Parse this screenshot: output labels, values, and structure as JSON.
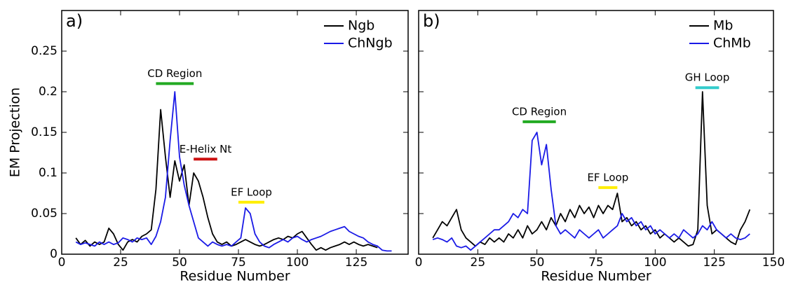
{
  "chart_data": [
    {
      "type": "line",
      "panel_label": "a)",
      "xlabel": "Residue Number",
      "ylabel": "EM Projection",
      "xlim": [
        0,
        147
      ],
      "xticks": [
        0,
        25,
        50,
        75,
        100,
        125
      ],
      "ylim": [
        0,
        0.3
      ],
      "yticks": [
        0,
        0.05,
        0.1,
        0.15,
        0.2,
        0.25
      ],
      "legend": "upper right",
      "x": [
        6,
        8,
        10,
        12,
        14,
        16,
        18,
        20,
        22,
        24,
        26,
        28,
        30,
        32,
        34,
        36,
        38,
        40,
        42,
        44,
        46,
        48,
        50,
        52,
        54,
        56,
        58,
        60,
        62,
        64,
        66,
        68,
        70,
        72,
        74,
        76,
        78,
        80,
        82,
        84,
        86,
        88,
        90,
        92,
        94,
        96,
        98,
        100,
        102,
        104,
        106,
        108,
        110,
        112,
        114,
        116,
        118,
        120,
        122,
        124,
        126,
        128,
        130,
        132,
        134,
        136,
        138,
        140
      ],
      "series": [
        {
          "name": "Ngb",
          "color": "#000000",
          "values": [
            0.02,
            0.012,
            0.017,
            0.01,
            0.015,
            0.012,
            0.015,
            0.032,
            0.025,
            0.012,
            0.005,
            0.015,
            0.018,
            0.015,
            0.022,
            0.025,
            0.03,
            0.08,
            0.178,
            0.12,
            0.07,
            0.115,
            0.09,
            0.11,
            0.06,
            0.1,
            0.09,
            0.07,
            0.045,
            0.025,
            0.015,
            0.012,
            0.015,
            0.01,
            0.012,
            0.015,
            0.018,
            0.015,
            0.012,
            0.01,
            0.012,
            0.015,
            0.018,
            0.02,
            0.018,
            0.022,
            0.02,
            0.025,
            0.028,
            0.02,
            0.012,
            0.005,
            0.008,
            0.005,
            0.008,
            0.01,
            0.012,
            0.015,
            0.012,
            0.015,
            0.012,
            0.01,
            0.012,
            0.01,
            0.008,
            null,
            null,
            null
          ]
        },
        {
          "name": "ChNgb",
          "color": "#1a1ae6",
          "values": [
            0.015,
            0.012,
            0.014,
            0.012,
            0.01,
            0.015,
            0.012,
            0.015,
            0.012,
            0.014,
            0.02,
            0.018,
            0.015,
            0.02,
            0.018,
            0.02,
            0.012,
            0.022,
            0.04,
            0.07,
            0.14,
            0.2,
            0.12,
            0.085,
            0.06,
            0.04,
            0.02,
            0.015,
            0.01,
            0.015,
            0.012,
            0.01,
            0.012,
            0.01,
            0.015,
            0.02,
            0.057,
            0.05,
            0.025,
            0.015,
            0.01,
            0.008,
            0.012,
            0.015,
            0.018,
            0.015,
            0.02,
            0.022,
            0.018,
            0.015,
            0.018,
            0.02,
            0.022,
            0.025,
            0.028,
            0.03,
            0.032,
            0.034,
            0.028,
            0.025,
            0.022,
            0.02,
            0.015,
            0.012,
            0.01,
            0.005,
            0.004,
            0.004
          ]
        }
      ],
      "annotations": [
        {
          "text": "CD Region",
          "color": "#22aa22",
          "bar_color": "#22aa22",
          "x": [
            40,
            56
          ],
          "y": 0.21
        },
        {
          "text": "E-Helix Nt",
          "color": "#dd1111",
          "bar_color": "#cc1111",
          "x": [
            56,
            66
          ],
          "y": 0.117
        },
        {
          "text": "EF Loop",
          "color": "#ff9900",
          "bar_color": "#ffee00",
          "x": [
            75,
            86
          ],
          "y": 0.064
        }
      ]
    },
    {
      "type": "line",
      "panel_label": "b)",
      "xlabel": "Residue Number",
      "xlim": [
        0,
        150
      ],
      "xticks": [
        0,
        25,
        50,
        75,
        100,
        125,
        150
      ],
      "ylim": [
        0,
        0.3
      ],
      "yticks": [
        0,
        0.05,
        0.1,
        0.15,
        0.2,
        0.25
      ],
      "legend": "upper right",
      "x": [
        6,
        8,
        10,
        12,
        14,
        16,
        18,
        20,
        22,
        24,
        26,
        28,
        30,
        32,
        34,
        36,
        38,
        40,
        42,
        44,
        46,
        48,
        50,
        52,
        54,
        56,
        58,
        60,
        62,
        64,
        66,
        68,
        70,
        72,
        74,
        76,
        78,
        80,
        82,
        84,
        86,
        88,
        90,
        92,
        94,
        96,
        98,
        100,
        102,
        104,
        106,
        108,
        110,
        112,
        114,
        116,
        118,
        120,
        122,
        124,
        126,
        128,
        130,
        132,
        134,
        136,
        138,
        140
      ],
      "series": [
        {
          "name": "Mb",
          "color": "#000000",
          "values": [
            0.02,
            0.03,
            0.04,
            0.035,
            0.045,
            0.055,
            0.03,
            0.02,
            0.015,
            0.01,
            0.015,
            0.012,
            0.02,
            0.015,
            0.02,
            0.015,
            0.025,
            0.02,
            0.03,
            0.02,
            0.035,
            0.025,
            0.03,
            0.04,
            0.03,
            0.045,
            0.035,
            0.05,
            0.04,
            0.055,
            0.045,
            0.06,
            0.05,
            0.058,
            0.045,
            0.06,
            0.05,
            0.06,
            0.055,
            0.075,
            0.04,
            0.045,
            0.035,
            0.04,
            0.03,
            0.035,
            0.025,
            0.03,
            0.02,
            0.025,
            0.02,
            0.015,
            0.02,
            0.015,
            0.01,
            0.012,
            0.03,
            0.2,
            0.06,
            0.025,
            0.03,
            0.025,
            0.02,
            0.015,
            0.012,
            0.03,
            0.04,
            0.055
          ]
        },
        {
          "name": "ChMb",
          "color": "#1a1ae6",
          "values": [
            0.018,
            0.02,
            0.018,
            0.015,
            0.02,
            0.01,
            0.008,
            0.01,
            0.005,
            0.01,
            0.015,
            0.02,
            0.025,
            0.03,
            0.03,
            0.035,
            0.04,
            0.05,
            0.045,
            0.055,
            0.05,
            0.14,
            0.15,
            0.11,
            0.135,
            0.08,
            0.035,
            0.025,
            0.03,
            0.025,
            0.02,
            0.03,
            0.025,
            0.02,
            0.025,
            0.03,
            0.02,
            0.025,
            0.03,
            0.035,
            0.05,
            0.04,
            0.045,
            0.035,
            0.04,
            0.03,
            0.035,
            0.025,
            0.03,
            0.025,
            0.02,
            0.025,
            0.02,
            0.03,
            0.025,
            0.02,
            0.025,
            0.035,
            0.03,
            0.04,
            0.03,
            0.025,
            0.02,
            0.025,
            0.02,
            0.018,
            0.02,
            0.025
          ]
        }
      ],
      "annotations": [
        {
          "text": "CD Region",
          "color": "#22aa22",
          "bar_color": "#22aa22",
          "x": [
            44,
            58
          ],
          "y": 0.163
        },
        {
          "text": "EF Loop",
          "color": "#ff9900",
          "bar_color": "#ffee00",
          "x": [
            76,
            84
          ],
          "y": 0.082
        },
        {
          "text": "GH Loop",
          "color": "#229999",
          "bar_color": "#33cccc",
          "x": [
            117,
            127
          ],
          "y": 0.205
        }
      ]
    }
  ]
}
